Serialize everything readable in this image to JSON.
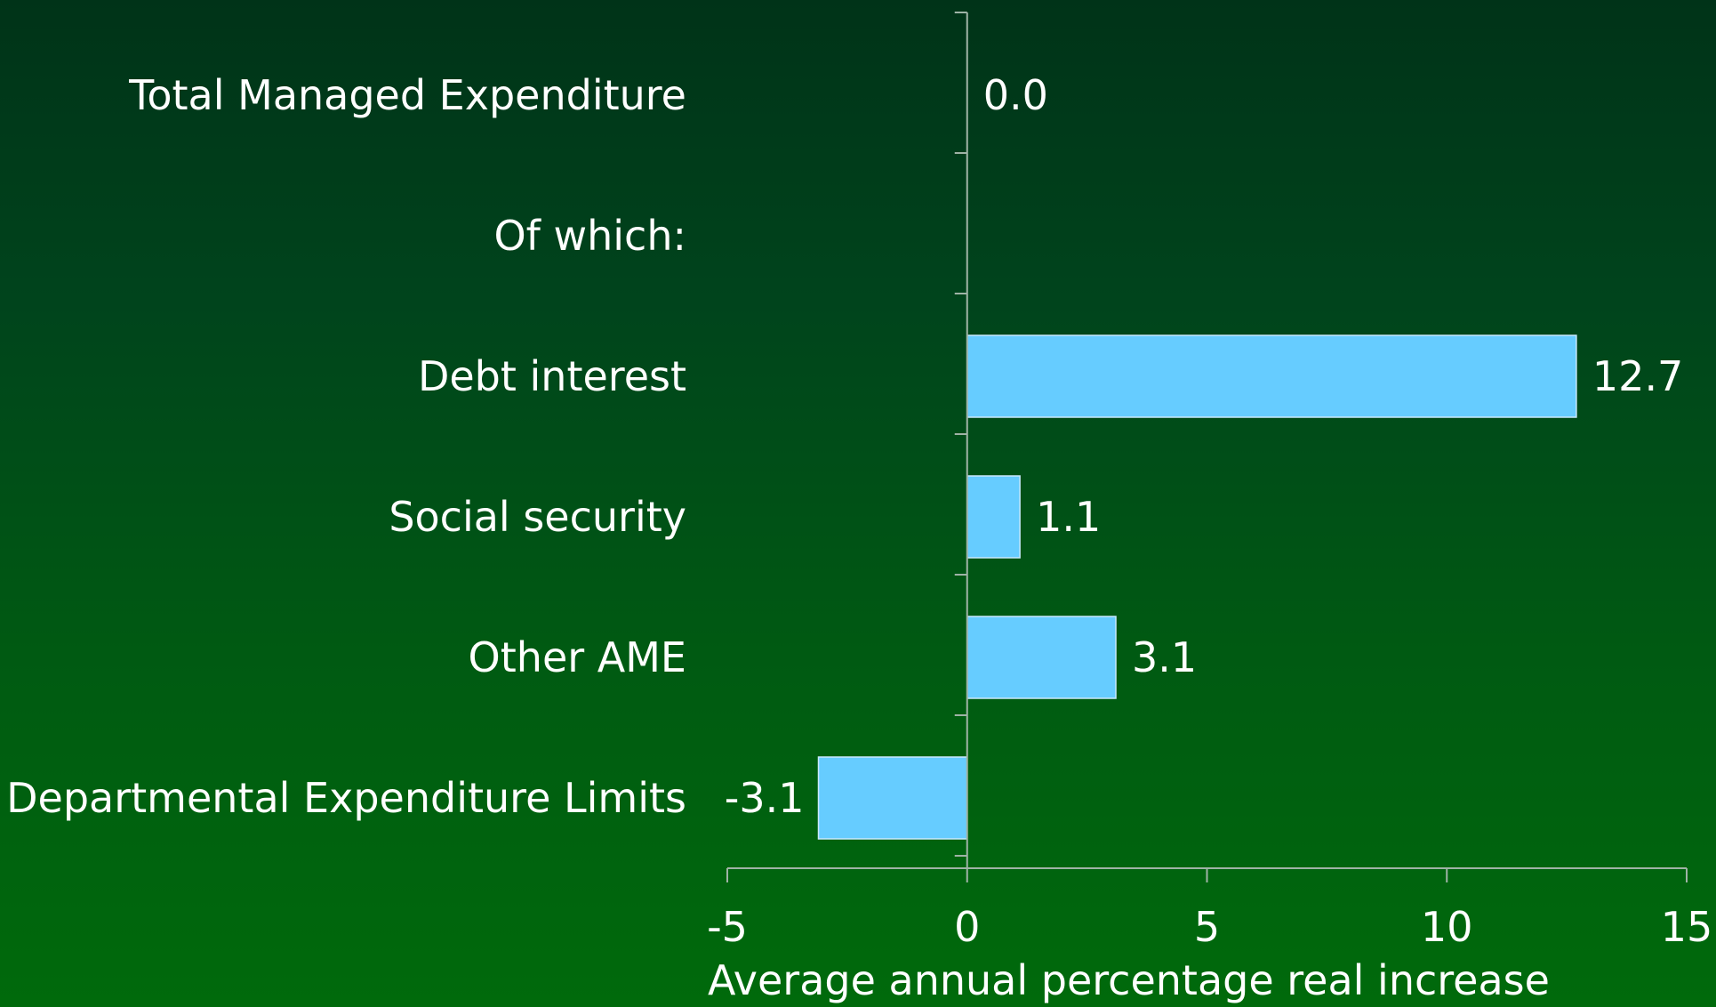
{
  "chart_data": {
    "type": "bar",
    "orientation": "horizontal",
    "categories": [
      "Total Managed Expenditure",
      "Of which:",
      "Debt interest",
      "Social security",
      "Other AME",
      "Departmental Expenditure Limits"
    ],
    "values": [
      0.0,
      null,
      12.7,
      1.1,
      3.1,
      -3.1
    ],
    "data_labels": [
      "0.0",
      "",
      "12.7",
      "1.1",
      "3.1",
      "-3.1"
    ],
    "xlabel": "Average annual percentage real increase",
    "xlim": [
      -5,
      15
    ],
    "xticks": [
      "-5",
      "0",
      "5",
      "10",
      "15"
    ],
    "grid": false,
    "legend": "none",
    "bar_color": "#66ccff"
  },
  "colors": {
    "background_top": "#003318",
    "background_bottom": "#006a0b",
    "text": "#ffffff",
    "axis": "#9fb3a6",
    "title_fragment": "#b8d23a"
  }
}
